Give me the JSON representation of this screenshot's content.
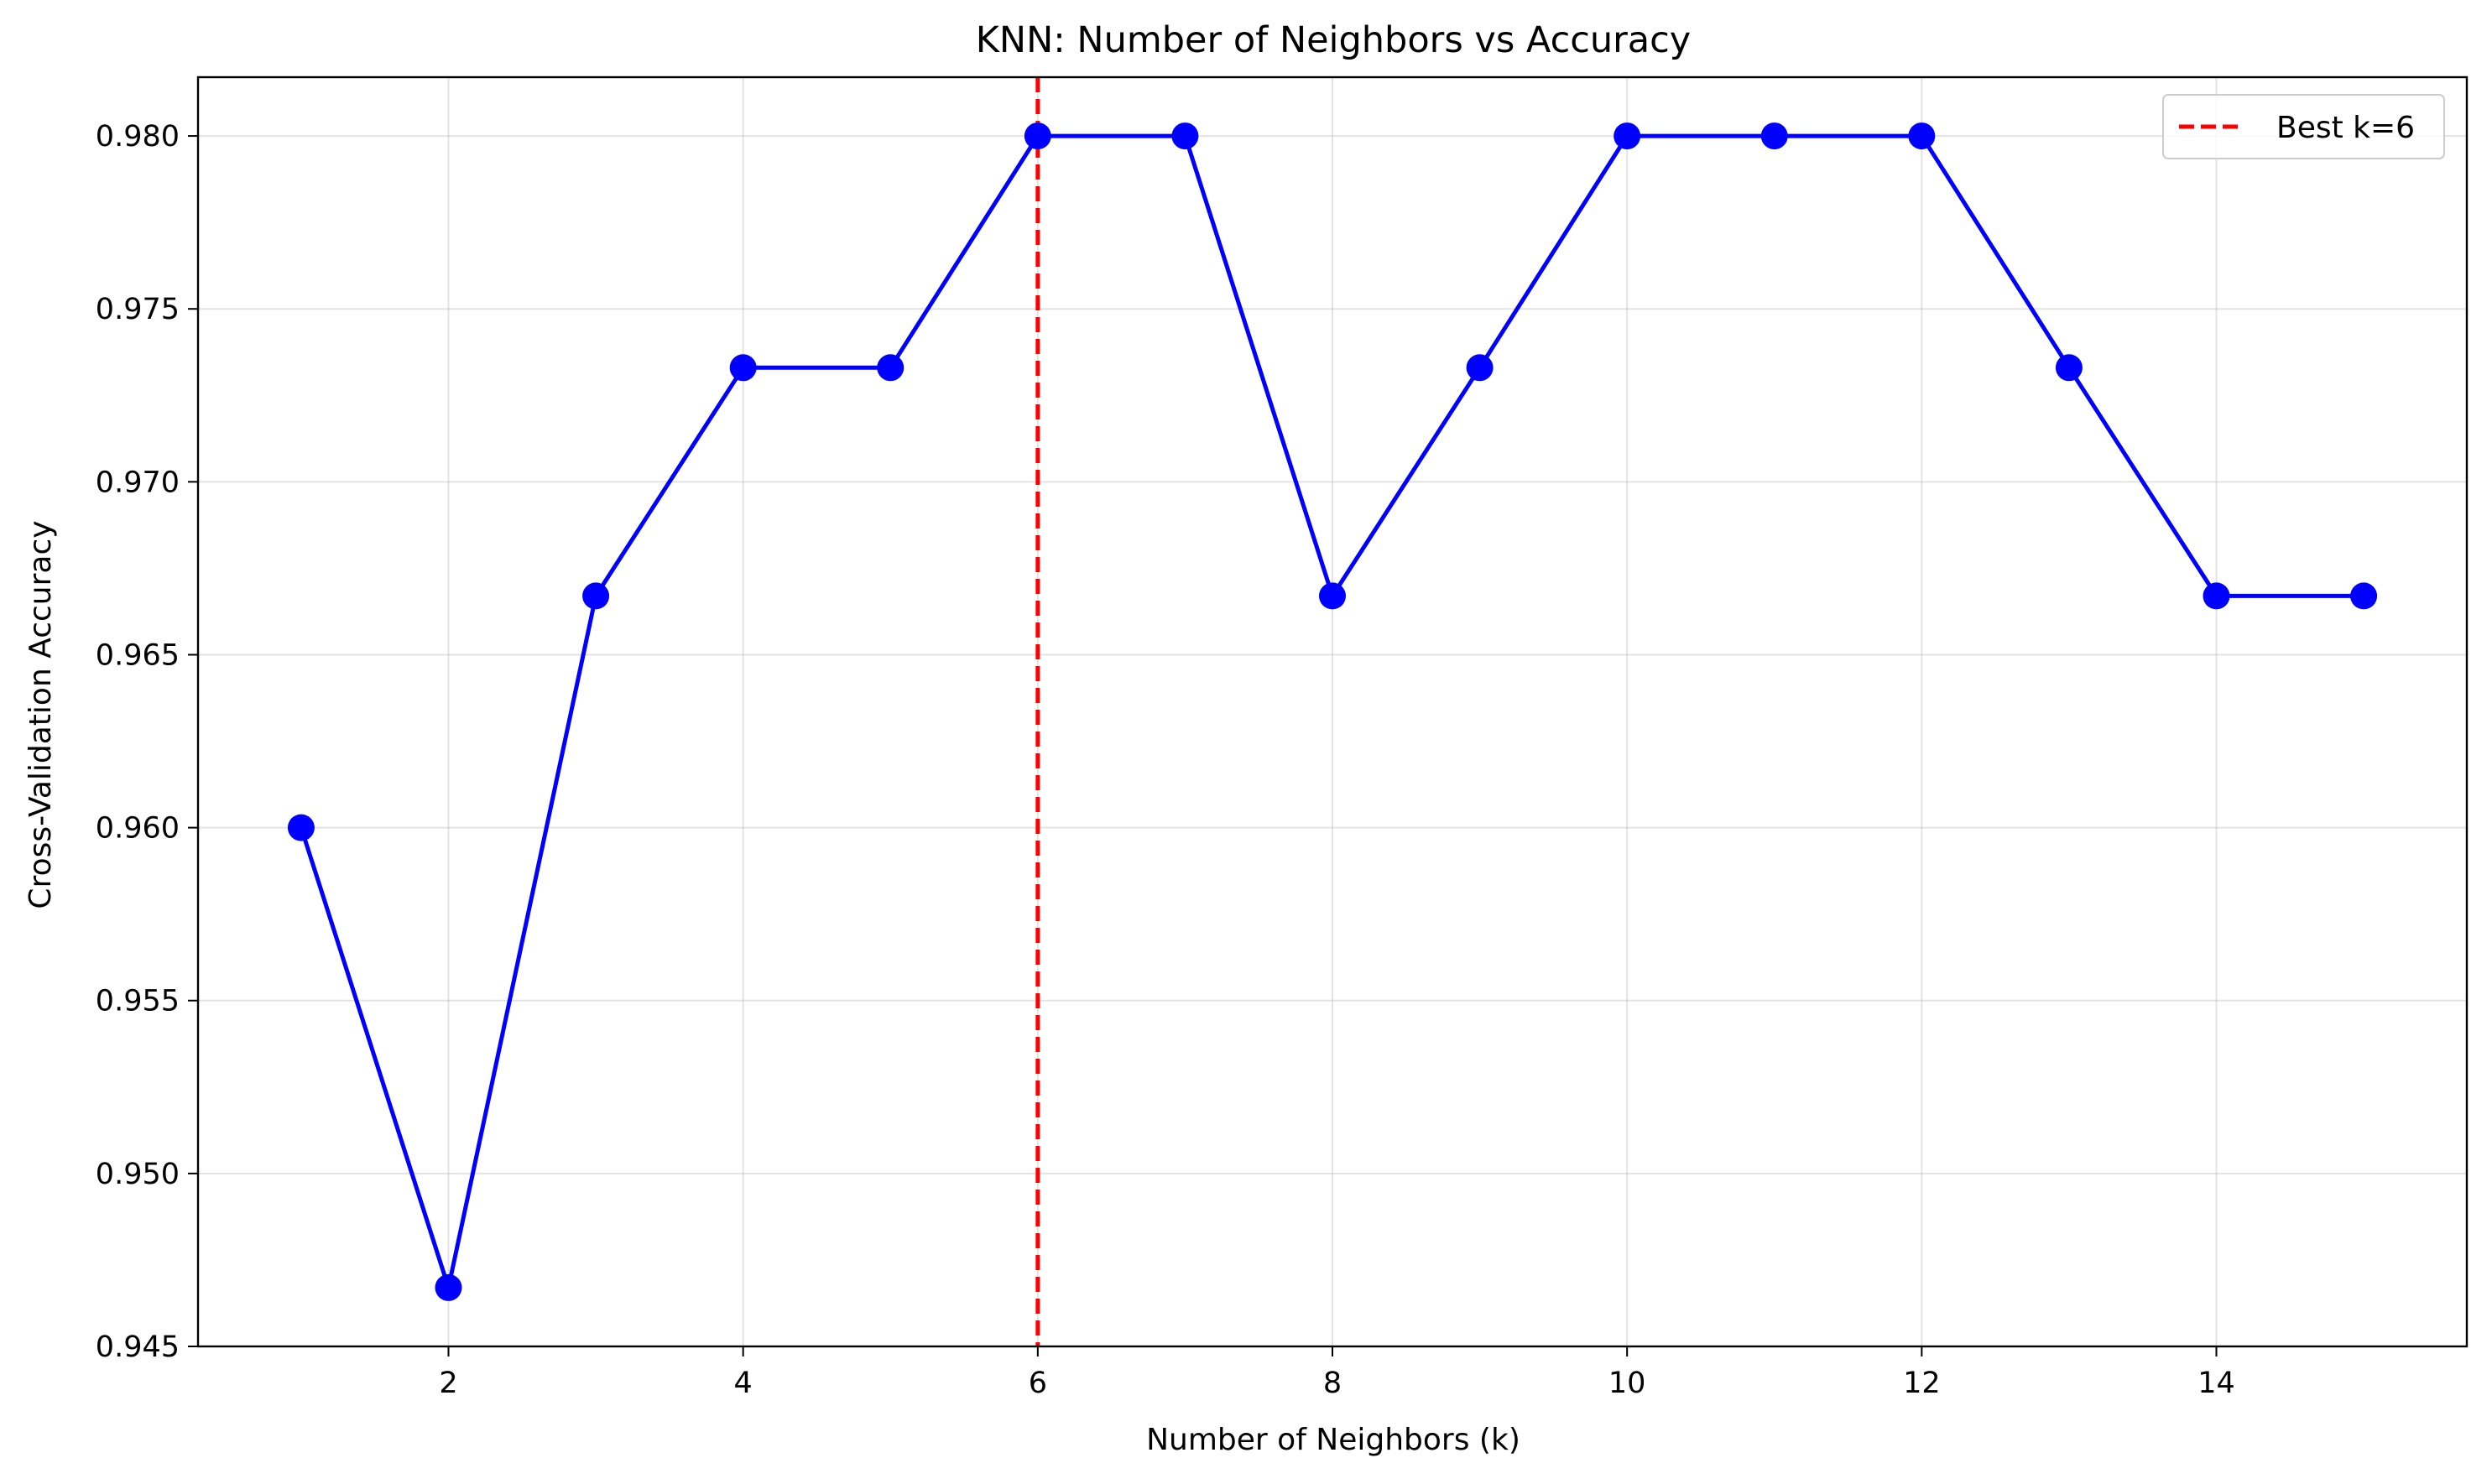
{
  "chart_data": {
    "type": "line",
    "title": "KNN: Number of Neighbors vs Accuracy",
    "xlabel": "Number of Neighbors (k)",
    "ylabel": "Cross-Validation Accuracy",
    "xlim": [
      0.3,
      15.7
    ],
    "ylim": [
      0.945,
      0.9817
    ],
    "x_ticks": [
      2,
      4,
      6,
      8,
      10,
      12,
      14
    ],
    "y_ticks": [
      0.945,
      0.95,
      0.955,
      0.96,
      0.965,
      0.97,
      0.975,
      0.98
    ],
    "y_tick_labels": [
      "0.945",
      "0.950",
      "0.955",
      "0.960",
      "0.965",
      "0.970",
      "0.975",
      "0.980"
    ],
    "grid": true,
    "legend_position": "top-right",
    "series": [
      {
        "x": [
          1,
          2,
          3,
          4,
          5,
          6,
          7,
          8,
          9,
          10,
          11,
          12,
          13,
          14,
          15
        ],
        "values": [
          0.96,
          0.9467,
          0.9667,
          0.9733,
          0.9733,
          0.98,
          0.98,
          0.9667,
          0.9733,
          0.98,
          0.98,
          0.98,
          0.9733,
          0.9667,
          0.9667
        ],
        "color": "#0000ff",
        "marker": "circle"
      }
    ],
    "annotations": [
      {
        "type": "vline",
        "x": 6,
        "label": "Best k=6",
        "color": "#ff0000",
        "style": "dashed"
      }
    ]
  }
}
